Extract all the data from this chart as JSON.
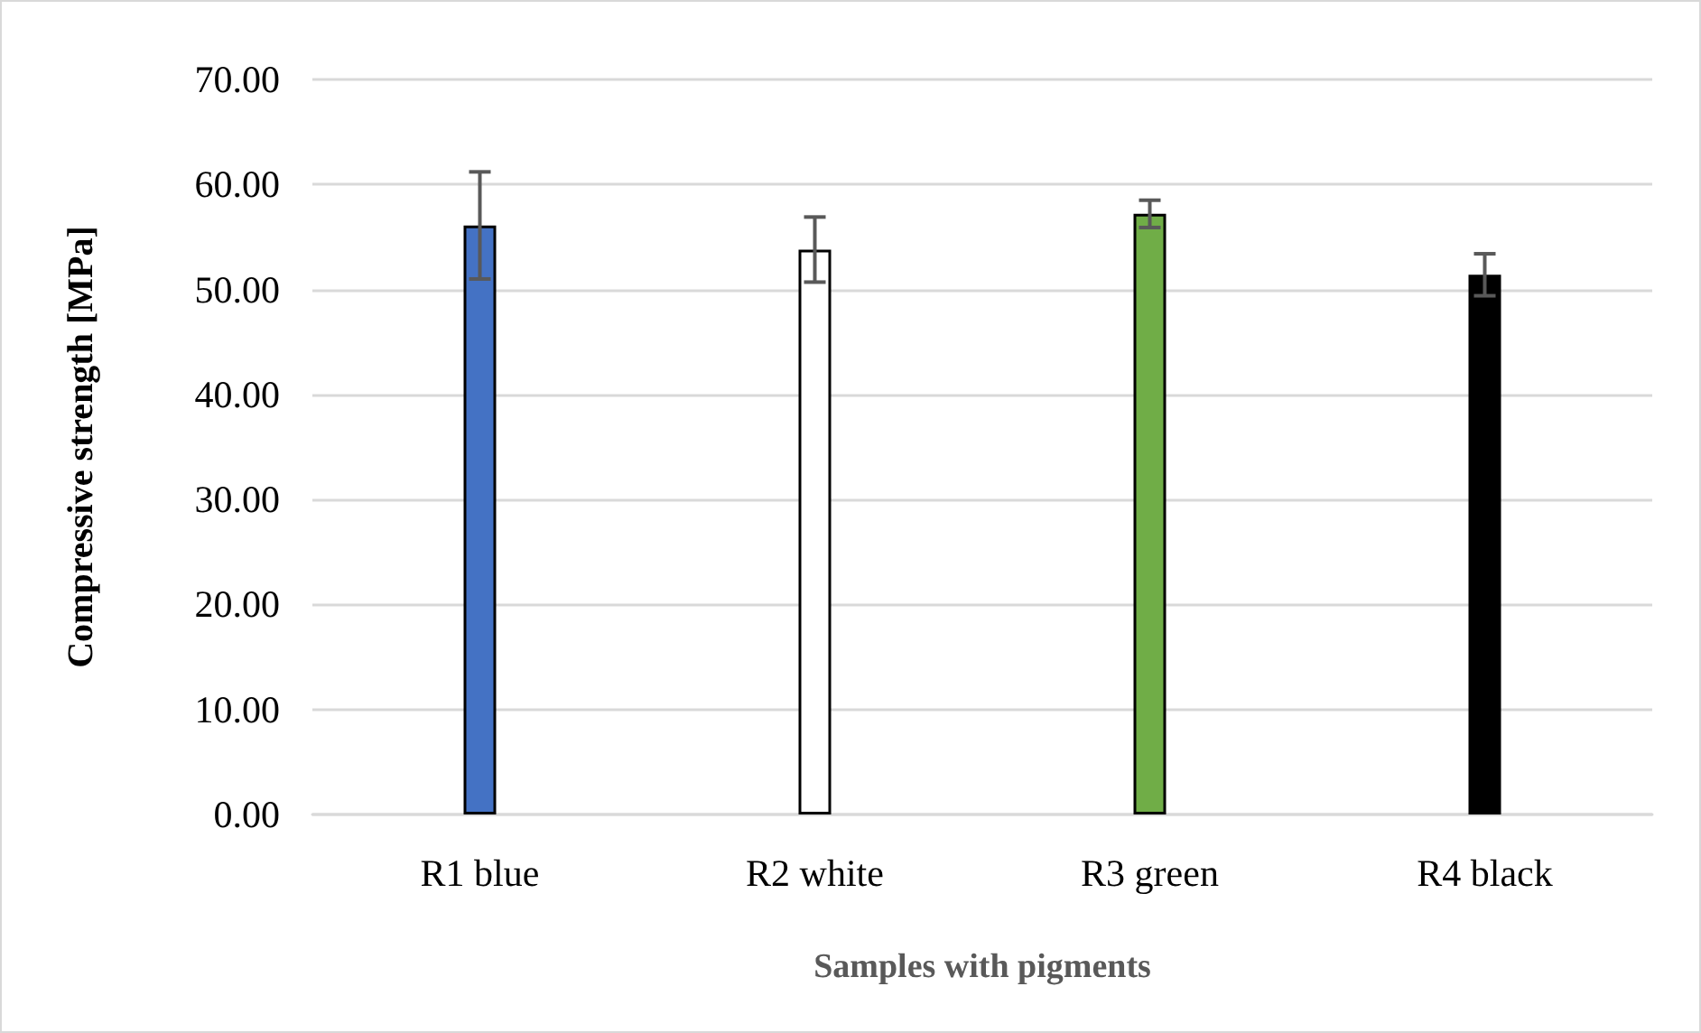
{
  "chart_data": {
    "type": "bar",
    "xlabel": "Samples with pigments",
    "ylabel": "Compressive strength [MPa]",
    "categories": [
      "R1 blue",
      "R2 white",
      "R3 green",
      "R4 black"
    ],
    "values": [
      56.1,
      53.8,
      57.2,
      51.4
    ],
    "colors": [
      "#4472c4",
      "#ffffff",
      "#70ad47",
      "#000000"
    ],
    "errors": [
      5.1,
      3.1,
      1.3,
      2.0
    ],
    "ylim": [
      0,
      70
    ],
    "yticks": [
      {
        "value": 0,
        "label": "0.00"
      },
      {
        "value": 10,
        "label": "10.00"
      },
      {
        "value": 20,
        "label": "20.00"
      },
      {
        "value": 30,
        "label": "30.00"
      },
      {
        "value": 40,
        "label": "40.00"
      },
      {
        "value": 50,
        "label": "50.00"
      },
      {
        "value": 60,
        "label": "60.00"
      },
      {
        "value": 70,
        "label": "70.00"
      }
    ],
    "grid": "y"
  }
}
